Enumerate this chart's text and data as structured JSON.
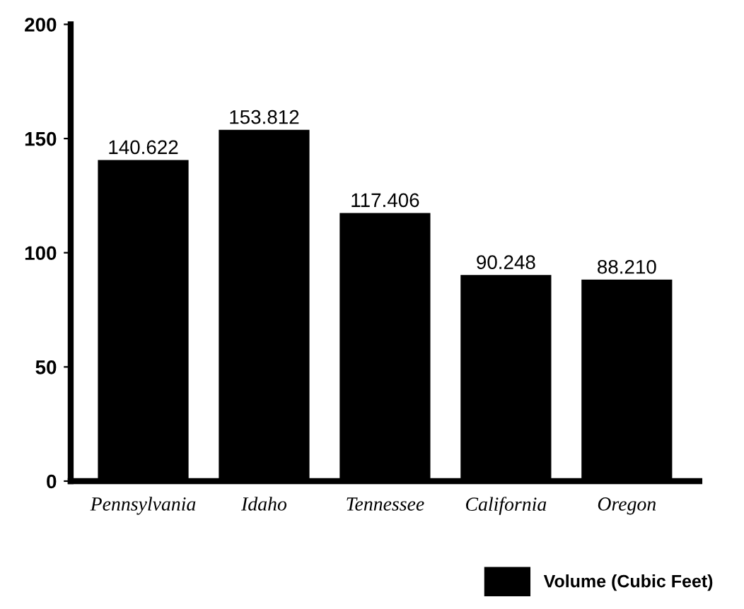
{
  "chart_data": {
    "type": "bar",
    "categories": [
      "Pennsylvania",
      "Idaho",
      "Tennessee",
      "California",
      "Oregon"
    ],
    "series": [
      {
        "name": "Volume (Cubic Feet)",
        "color": "#000000",
        "values": [
          140.622,
          153.812,
          117.406,
          90.248,
          88.21
        ],
        "value_labels": [
          "140.622",
          "153.812",
          "117.406",
          "90.248",
          "88.210"
        ]
      }
    ],
    "ylim": [
      0,
      200
    ],
    "yticks": [
      0,
      50,
      100,
      150,
      200
    ],
    "grid": false,
    "legend": "bottom right"
  }
}
